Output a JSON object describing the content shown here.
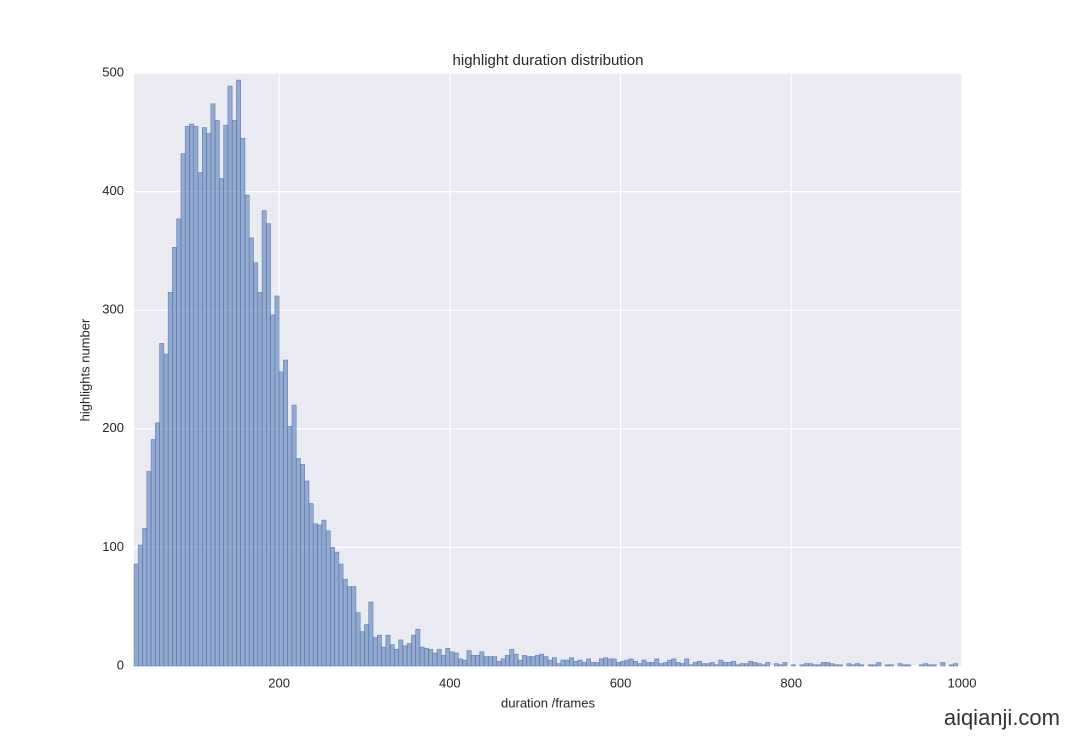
{
  "chart_data": {
    "type": "histogram",
    "title": "highlight duration distribution",
    "x_label": "duration /frames",
    "y_label": "highlights number",
    "color": "#4c72b0",
    "grid": true,
    "xlim": [
      30,
      1000
    ],
    "ylim": [
      0,
      500
    ],
    "xticks": [
      200,
      400,
      600,
      800,
      1000
    ],
    "yticks": [
      0,
      100,
      200,
      300,
      400,
      500
    ],
    "bins": [
      30,
      35,
      40,
      45,
      50,
      55,
      60,
      65,
      70,
      75,
      80,
      85,
      90,
      95,
      100,
      105,
      110,
      115,
      120,
      125,
      130,
      135,
      140,
      145,
      150,
      155,
      160,
      165,
      170,
      175,
      180,
      185,
      190,
      195,
      200,
      205,
      210,
      215,
      220,
      225,
      230,
      235,
      240,
      245,
      250,
      255,
      260,
      265,
      270,
      275,
      280,
      285,
      290,
      295,
      300,
      305,
      310,
      315,
      320,
      325,
      330,
      335,
      340,
      345,
      350,
      355,
      360,
      365,
      370,
      375,
      380,
      385,
      390,
      395,
      400,
      405,
      410,
      415,
      420,
      425,
      430,
      435,
      440,
      445,
      450,
      455,
      460,
      465,
      470,
      475,
      480,
      485,
      490,
      495,
      500,
      505,
      510,
      515,
      520,
      525,
      530,
      535,
      540,
      545,
      550,
      555,
      560,
      565,
      570,
      575,
      580,
      585,
      590,
      595,
      600,
      605,
      610,
      615,
      620,
      625,
      630,
      635,
      640,
      645,
      650,
      655,
      660,
      665,
      670,
      675,
      680,
      685,
      690,
      695,
      700,
      705,
      710,
      715,
      720,
      725,
      730,
      735,
      740,
      745,
      750,
      755,
      760,
      765,
      770,
      775,
      780,
      785,
      790,
      795,
      800,
      805,
      810,
      815,
      820,
      825,
      830,
      835,
      840,
      845,
      850,
      855,
      860,
      865,
      870,
      875,
      880,
      885,
      890,
      895,
      900,
      905,
      910,
      915,
      920,
      925,
      930,
      935,
      940,
      945,
      950,
      955,
      960,
      965,
      970,
      975,
      980,
      985,
      990,
      995,
      1000
    ],
    "values": [
      86,
      102,
      116,
      164,
      191,
      205,
      272,
      263,
      315,
      353,
      377,
      432,
      455,
      457,
      455,
      416,
      454,
      449,
      474,
      460,
      411,
      456,
      489,
      460,
      494,
      445,
      397,
      361,
      340,
      315,
      384,
      373,
      296,
      312,
      248,
      258,
      202,
      220,
      175,
      170,
      156,
      137,
      120,
      119,
      123,
      114,
      100,
      96,
      86,
      73,
      67,
      67,
      45,
      29,
      35,
      54,
      24,
      26,
      16,
      26,
      18,
      14,
      22,
      17,
      19,
      26,
      31,
      16,
      15,
      14,
      11,
      14,
      9,
      15,
      12,
      11,
      6,
      5,
      13,
      9,
      9,
      12,
      8,
      8,
      8,
      4,
      6,
      9,
      14,
      10,
      5,
      9,
      8,
      8,
      9,
      10,
      8,
      5,
      7,
      2,
      5,
      5,
      7,
      4,
      5,
      3,
      6,
      3,
      3,
      6,
      7,
      6,
      6,
      3,
      4,
      5,
      6,
      4,
      2,
      5,
      3,
      3,
      6,
      2,
      3,
      5,
      6,
      3,
      2,
      6,
      1,
      3,
      4,
      2,
      2,
      3,
      1,
      5,
      3,
      3,
      4,
      1,
      2,
      2,
      4,
      3,
      2,
      1,
      3,
      0,
      2,
      1,
      3,
      0,
      1,
      0,
      1,
      2,
      2,
      1,
      1,
      3,
      3,
      2,
      1,
      1,
      0,
      2,
      1,
      2,
      1,
      0,
      1,
      1,
      3,
      0,
      1,
      1,
      0,
      2,
      1,
      1,
      0,
      0,
      1,
      2,
      1,
      1,
      0,
      3,
      0,
      1,
      2,
      0
    ]
  },
  "watermark": "aiqianji.com"
}
